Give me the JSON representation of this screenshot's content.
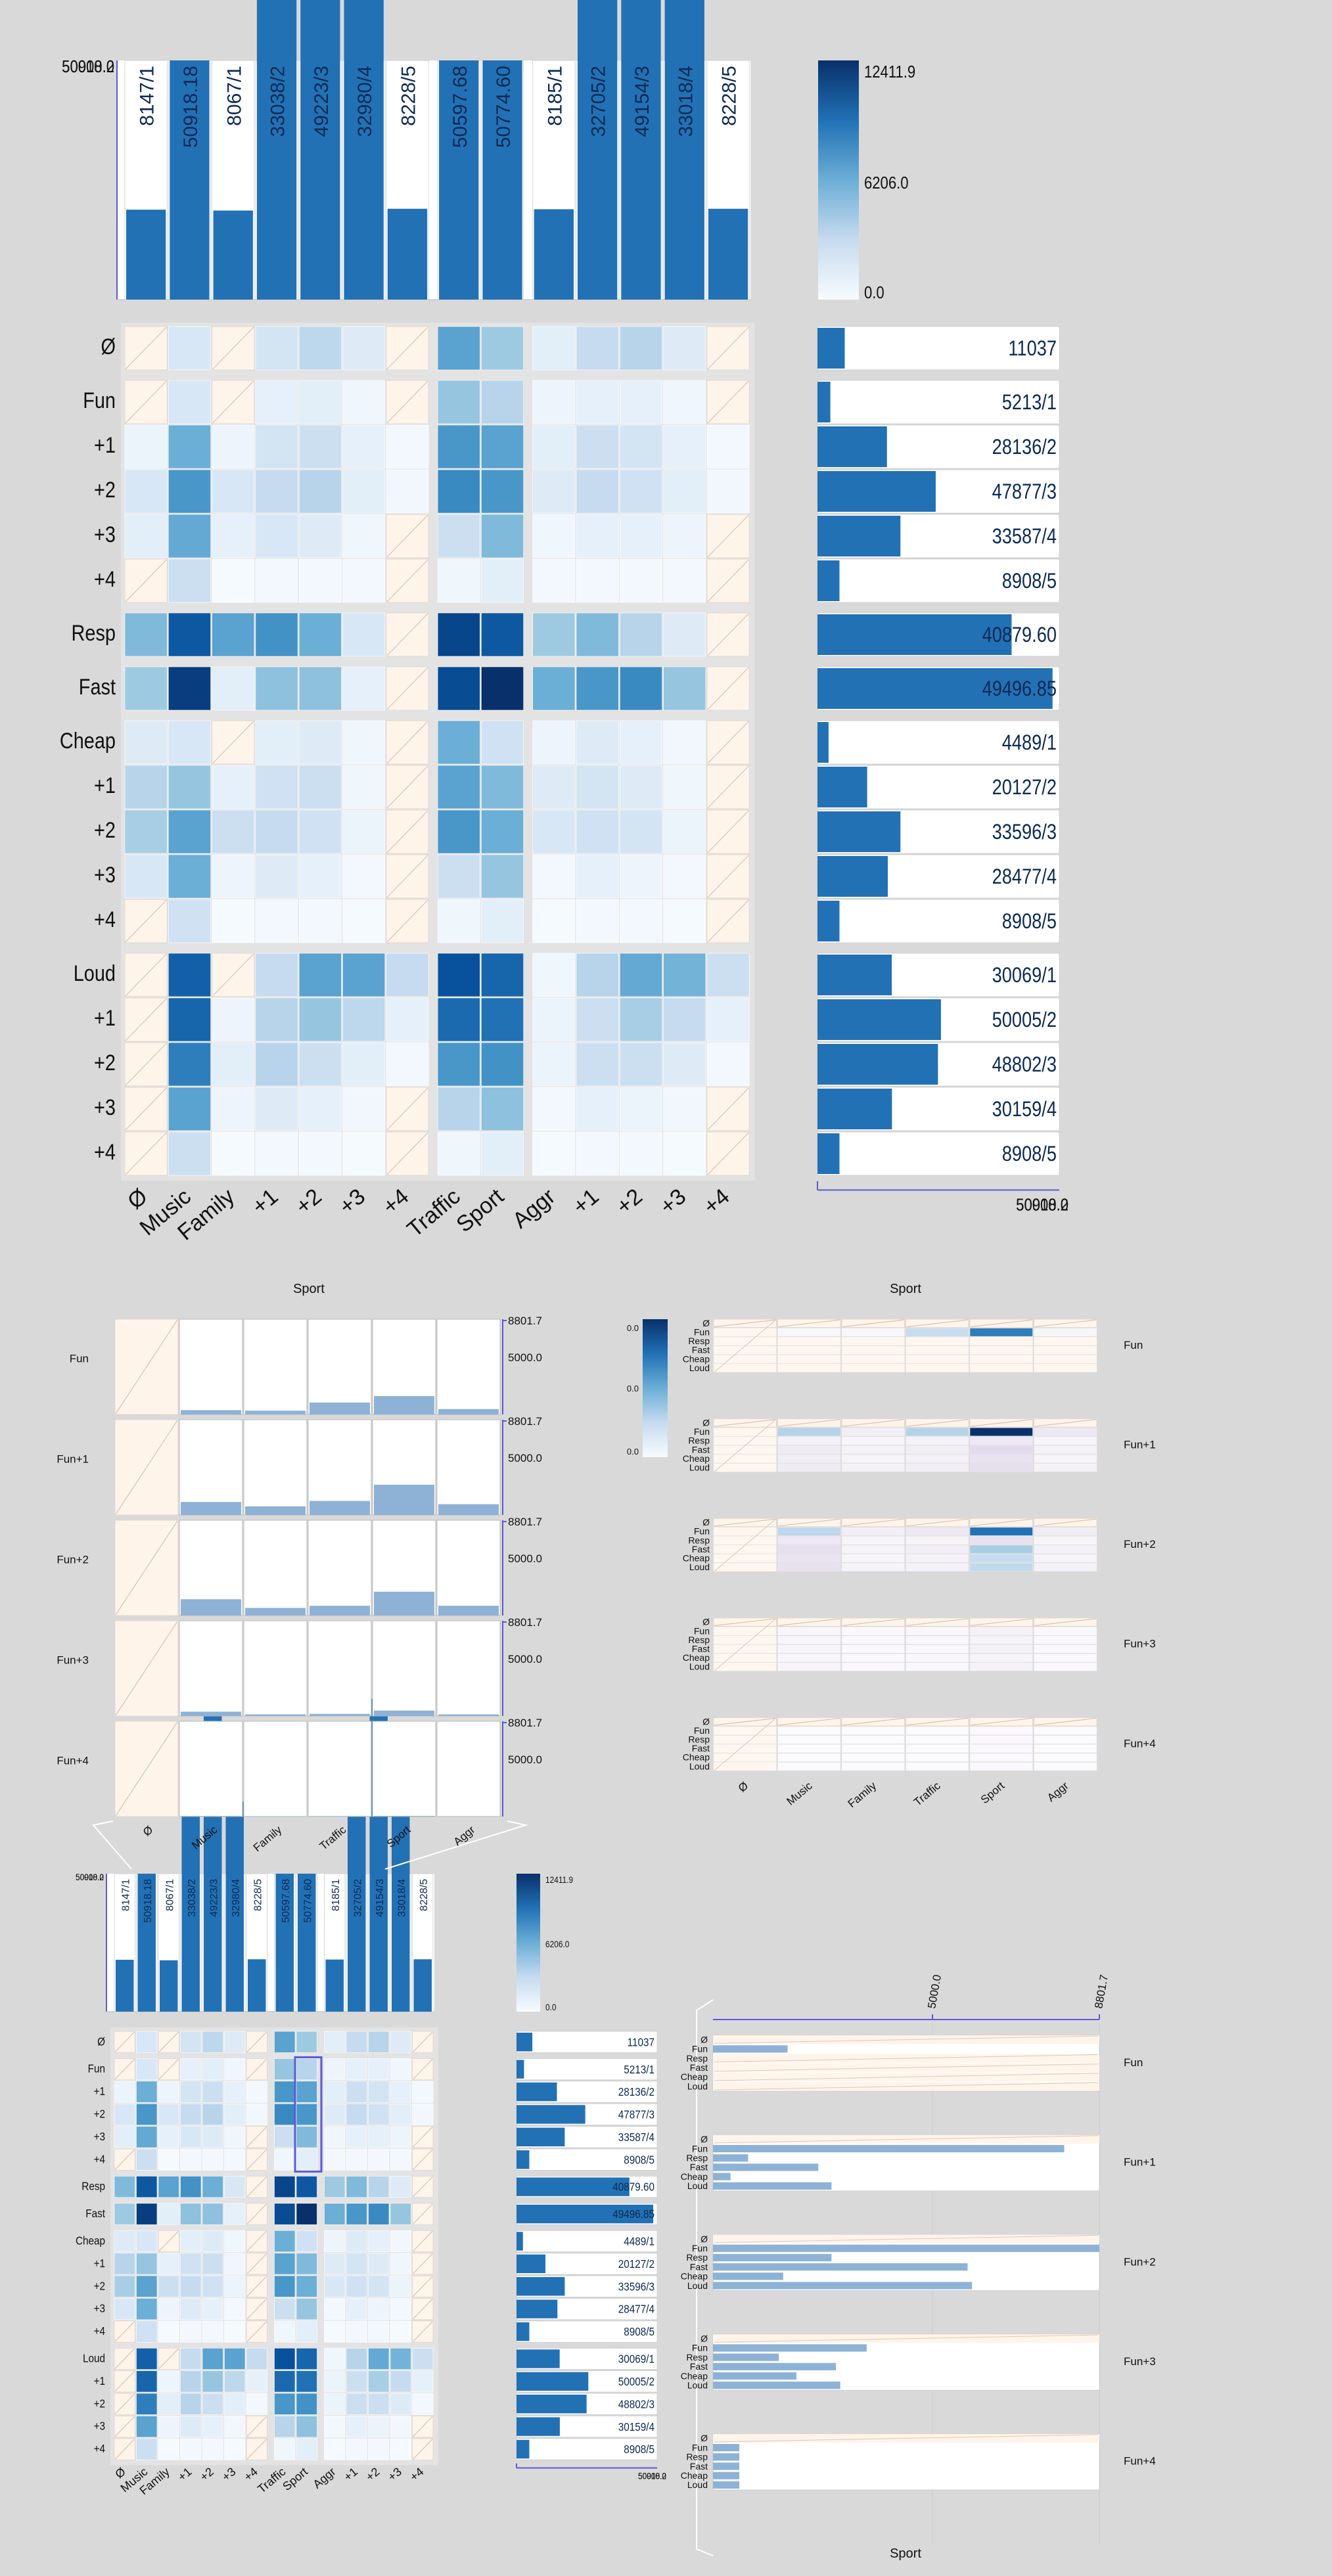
{
  "colors": {
    "accent": "#2271b5",
    "dark": "#08306b",
    "na": "#fff4ea",
    "axis": "#5a5ad6",
    "panel": "#ffffff"
  },
  "chart_data": [
    {
      "id": "matrix",
      "type": "heatmap",
      "columns": [
        "Ø",
        "Music",
        "Family",
        "+1",
        "+2",
        "+3",
        "+4",
        "Traffic",
        "Sport",
        "Aggr",
        "+1",
        "+2",
        "+3",
        "+4"
      ],
      "rows": [
        "Ø",
        "Fun",
        "+1",
        "+2",
        "+3",
        "+4",
        "Resp",
        "Fast",
        "Cheap",
        "+1",
        "+2",
        "+3",
        "+4",
        "Loud",
        "+1",
        "+2",
        "+3",
        "+4"
      ],
      "column_totals": [
        "8147/1",
        "50918.18",
        "8067/1",
        "33038/2",
        "49223/3",
        "32980/4",
        "8228/5",
        "50597.68",
        "50774.60",
        "8185/1",
        "32705/2",
        "49154/3",
        "33018/4",
        "8228/5"
      ],
      "column_total_values": [
        8147,
        50918.18,
        8067,
        33038,
        49223,
        32980,
        8228,
        50597.68,
        50774.6,
        8185,
        32705,
        49154,
        33018,
        8228
      ],
      "column_axis_max_label": "50918.2",
      "column_axis_overlap_labels": [
        "50000.0",
        "50918.2"
      ],
      "row_totals": [
        "11037",
        "5213/1",
        "28136/2",
        "47877/3",
        "33587/4",
        "8908/5",
        "40879.60",
        "49496.85",
        "4489/1",
        "20127/2",
        "33596/3",
        "28477/4",
        "8908/5",
        "30069/1",
        "50005/2",
        "48802/3",
        "30159/4",
        "8908/5"
      ],
      "row_total_values": [
        11037,
        5213,
        28136,
        47877,
        33587,
        8908,
        40879.6,
        49496.85,
        4489,
        20127,
        33596,
        28477,
        8908,
        30069,
        50005,
        48802,
        30159,
        8908
      ],
      "row_axis_labels": [
        "50000.0",
        "50918.2"
      ],
      "colorbar": {
        "max": "12411.9",
        "mid": "6206.0",
        "min": "0.0"
      },
      "cell_intensity": [
        [
          -1,
          0.15,
          -1,
          0.18,
          0.28,
          0.12,
          -1,
          0.55,
          0.38,
          0.1,
          0.25,
          0.3,
          0.12,
          -1
        ],
        [
          -1,
          0.15,
          -1,
          0.08,
          0.1,
          0.04,
          -1,
          0.4,
          0.3,
          0.05,
          0.08,
          0.08,
          0.04,
          -1
        ],
        [
          0.06,
          0.5,
          0.05,
          0.18,
          0.22,
          0.08,
          0.02,
          0.6,
          0.55,
          0.1,
          0.22,
          0.18,
          0.08,
          0.02
        ],
        [
          0.15,
          0.6,
          0.15,
          0.25,
          0.3,
          0.1,
          0.03,
          0.65,
          0.6,
          0.12,
          0.25,
          0.2,
          0.1,
          0.03
        ],
        [
          0.1,
          0.52,
          0.08,
          0.15,
          0.12,
          0.04,
          -1,
          0.22,
          0.45,
          0.04,
          0.08,
          0.08,
          0.05,
          -1
        ],
        [
          -1,
          0.22,
          0.01,
          0.02,
          0.02,
          0.02,
          -1,
          0.04,
          0.1,
          0.02,
          0.02,
          0.02,
          0.02,
          -1
        ],
        [
          0.45,
          0.85,
          0.55,
          0.62,
          0.5,
          0.15,
          -1,
          0.92,
          0.85,
          0.38,
          0.45,
          0.3,
          0.12,
          -1
        ],
        [
          0.38,
          0.95,
          0.1,
          0.42,
          0.42,
          0.08,
          -1,
          0.9,
          1.0,
          0.5,
          0.6,
          0.65,
          0.4,
          -1
        ],
        [
          0.12,
          0.15,
          -1,
          0.1,
          0.12,
          0.04,
          -1,
          0.5,
          0.2,
          0.05,
          0.12,
          0.08,
          0.03,
          -1
        ],
        [
          0.3,
          0.4,
          0.08,
          0.2,
          0.22,
          0.04,
          -1,
          0.55,
          0.45,
          0.12,
          0.18,
          0.12,
          0.04,
          -1
        ],
        [
          0.35,
          0.55,
          0.22,
          0.25,
          0.2,
          0.06,
          -1,
          0.6,
          0.5,
          0.15,
          0.2,
          0.18,
          0.06,
          -1
        ],
        [
          0.15,
          0.5,
          0.05,
          0.12,
          0.08,
          0.02,
          -1,
          0.22,
          0.4,
          0.02,
          0.08,
          0.05,
          0.02,
          -1
        ],
        [
          -1,
          0.2,
          0.01,
          0.02,
          0.02,
          0.01,
          -1,
          0.04,
          0.1,
          0.01,
          0.02,
          0.02,
          0.01,
          -1
        ],
        [
          -1,
          0.82,
          -1,
          0.25,
          0.55,
          0.55,
          0.25,
          0.88,
          0.8,
          0.04,
          0.3,
          0.52,
          0.48,
          0.22
        ],
        [
          -1,
          0.8,
          0.05,
          0.3,
          0.4,
          0.28,
          0.08,
          0.78,
          0.75,
          0.06,
          0.22,
          0.35,
          0.25,
          0.08
        ],
        [
          -1,
          0.7,
          0.1,
          0.3,
          0.22,
          0.1,
          0.02,
          0.6,
          0.62,
          0.06,
          0.22,
          0.22,
          0.12,
          0.02
        ],
        [
          -1,
          0.55,
          0.05,
          0.12,
          0.08,
          0.03,
          -1,
          0.3,
          0.42,
          0.02,
          0.08,
          0.06,
          0.03,
          -1
        ],
        [
          -1,
          0.22,
          0.01,
          0.02,
          0.02,
          0.01,
          -1,
          0.04,
          0.1,
          0.01,
          0.02,
          0.02,
          0.01,
          -1
        ]
      ]
    },
    {
      "id": "fun-by-sport-bars",
      "type": "bar",
      "title": "Sport",
      "categories": [
        "Ø",
        "Music",
        "Family",
        "Traffic",
        "Sport",
        "Aggr"
      ],
      "facets": [
        "Fun",
        "Fun+1",
        "Fun+2",
        "Fun+3",
        "Fun+4"
      ],
      "axis_max_label": "8801.7",
      "axis_mid_label": "5000.0",
      "ylim": [
        0,
        8801.7
      ],
      "series": [
        {
          "name": "Fun",
          "values": [
            null,
            400,
            350,
            1100,
            1700,
            500
          ]
        },
        {
          "name": "Fun+1",
          "values": [
            null,
            1200,
            800,
            1300,
            2800,
            1000
          ]
        },
        {
          "name": "Fun+2",
          "values": [
            null,
            1500,
            700,
            900,
            2200,
            900
          ]
        },
        {
          "name": "Fun+3",
          "values": [
            null,
            400,
            150,
            200,
            500,
            150
          ]
        },
        {
          "name": "Fun+4",
          "values": [
            null,
            50,
            30,
            40,
            60,
            20
          ]
        }
      ]
    },
    {
      "id": "fun-by-sport-heatmap",
      "type": "heatmap",
      "title": "Sport",
      "columns": [
        "Ø",
        "Music",
        "Family",
        "Traffic",
        "Sport",
        "Aggr"
      ],
      "row_labels": [
        "Ø",
        "Fun",
        "Resp",
        "Fast",
        "Cheap",
        "Loud"
      ],
      "facets": [
        "Fun",
        "Fun+1",
        "Fun+2",
        "Fun+3",
        "Fun+4"
      ],
      "colorbar": {
        "max": "0.0",
        "mid": "0.0",
        "min": "0.0"
      },
      "cell_intensity": [
        [
          [
            -1,
            -1,
            -1,
            -1,
            -1,
            -1
          ],
          [
            -1,
            0.04,
            0.03,
            0.35,
            0.7,
            0.05
          ],
          [
            -1,
            -1,
            -1,
            -1,
            -1,
            -1
          ],
          [
            -1,
            -1,
            -1,
            -1,
            -1,
            -1
          ],
          [
            -1,
            -1,
            -1,
            -1,
            -1,
            -1
          ],
          [
            -1,
            -1,
            -1,
            -1,
            -1,
            -1
          ]
        ],
        [
          [
            -1,
            -1,
            -1,
            -1,
            -1,
            -1
          ],
          [
            -1,
            0.45,
            0.1,
            0.45,
            1.0,
            0.15
          ],
          [
            -1,
            0.08,
            0.05,
            0.08,
            0.15,
            0.05
          ],
          [
            -1,
            0.12,
            0.08,
            0.1,
            0.25,
            0.08
          ],
          [
            -1,
            0.1,
            0.06,
            0.08,
            0.2,
            0.06
          ],
          [
            -1,
            0.12,
            0.08,
            0.1,
            0.22,
            0.08
          ]
        ],
        [
          [
            -1,
            -1,
            -1,
            -1,
            -1,
            -1
          ],
          [
            -1,
            0.4,
            0.1,
            0.15,
            0.75,
            0.12
          ],
          [
            -1,
            0.15,
            0.05,
            0.06,
            0.2,
            0.05
          ],
          [
            -1,
            0.22,
            0.06,
            0.1,
            0.5,
            0.08
          ],
          [
            -1,
            0.18,
            0.05,
            0.08,
            0.35,
            0.06
          ],
          [
            -1,
            0.2,
            0.06,
            0.08,
            0.38,
            0.08
          ]
        ],
        [
          [
            -1,
            -1,
            -1,
            -1,
            -1,
            -1
          ],
          [
            -1,
            0.04,
            0.02,
            0.03,
            0.08,
            0.02
          ],
          [
            -1,
            0.04,
            0.02,
            0.03,
            0.06,
            0.02
          ],
          [
            -1,
            0.05,
            0.02,
            0.03,
            0.08,
            0.02
          ],
          [
            -1,
            0.04,
            0.02,
            0.03,
            0.06,
            0.02
          ],
          [
            -1,
            0.05,
            0.02,
            0.03,
            0.07,
            0.02
          ]
        ],
        [
          [
            -1,
            -1,
            -1,
            -1,
            -1,
            -1
          ],
          [
            -1,
            0.01,
            0.01,
            0.01,
            0.02,
            0.01
          ],
          [
            -1,
            0.01,
            0.01,
            0.01,
            0.02,
            0.01
          ],
          [
            -1,
            0.01,
            0.01,
            0.01,
            0.02,
            0.01
          ],
          [
            -1,
            0.01,
            0.01,
            0.01,
            0.02,
            0.01
          ],
          [
            -1,
            0.01,
            0.01,
            0.01,
            0.02,
            0.01
          ]
        ]
      ]
    },
    {
      "id": "fun-sport-horizontal-bars",
      "type": "bar",
      "title": "Sport",
      "categories": [
        "Ø",
        "Fun",
        "Resp",
        "Fast",
        "Cheap",
        "Loud"
      ],
      "facets": [
        "Fun",
        "Fun+1",
        "Fun+2",
        "Fun+3",
        "Fun+4"
      ],
      "axis_labels": [
        "5000.0",
        "8801.7"
      ],
      "xlim": [
        0,
        8801.7
      ],
      "series": [
        {
          "name": "Fun",
          "values": [
            null,
            1700,
            null,
            null,
            null,
            null
          ]
        },
        {
          "name": "Fun+1",
          "values": [
            null,
            8000,
            800,
            2400,
            400,
            2700
          ]
        },
        {
          "name": "Fun+2",
          "values": [
            null,
            8801.7,
            2700,
            5800,
            1600,
            5900
          ]
        },
        {
          "name": "Fun+3",
          "values": [
            null,
            3500,
            1500,
            2800,
            1900,
            2900
          ]
        },
        {
          "name": "Fun+4",
          "values": [
            null,
            600,
            600,
            600,
            600,
            600
          ]
        }
      ]
    }
  ]
}
